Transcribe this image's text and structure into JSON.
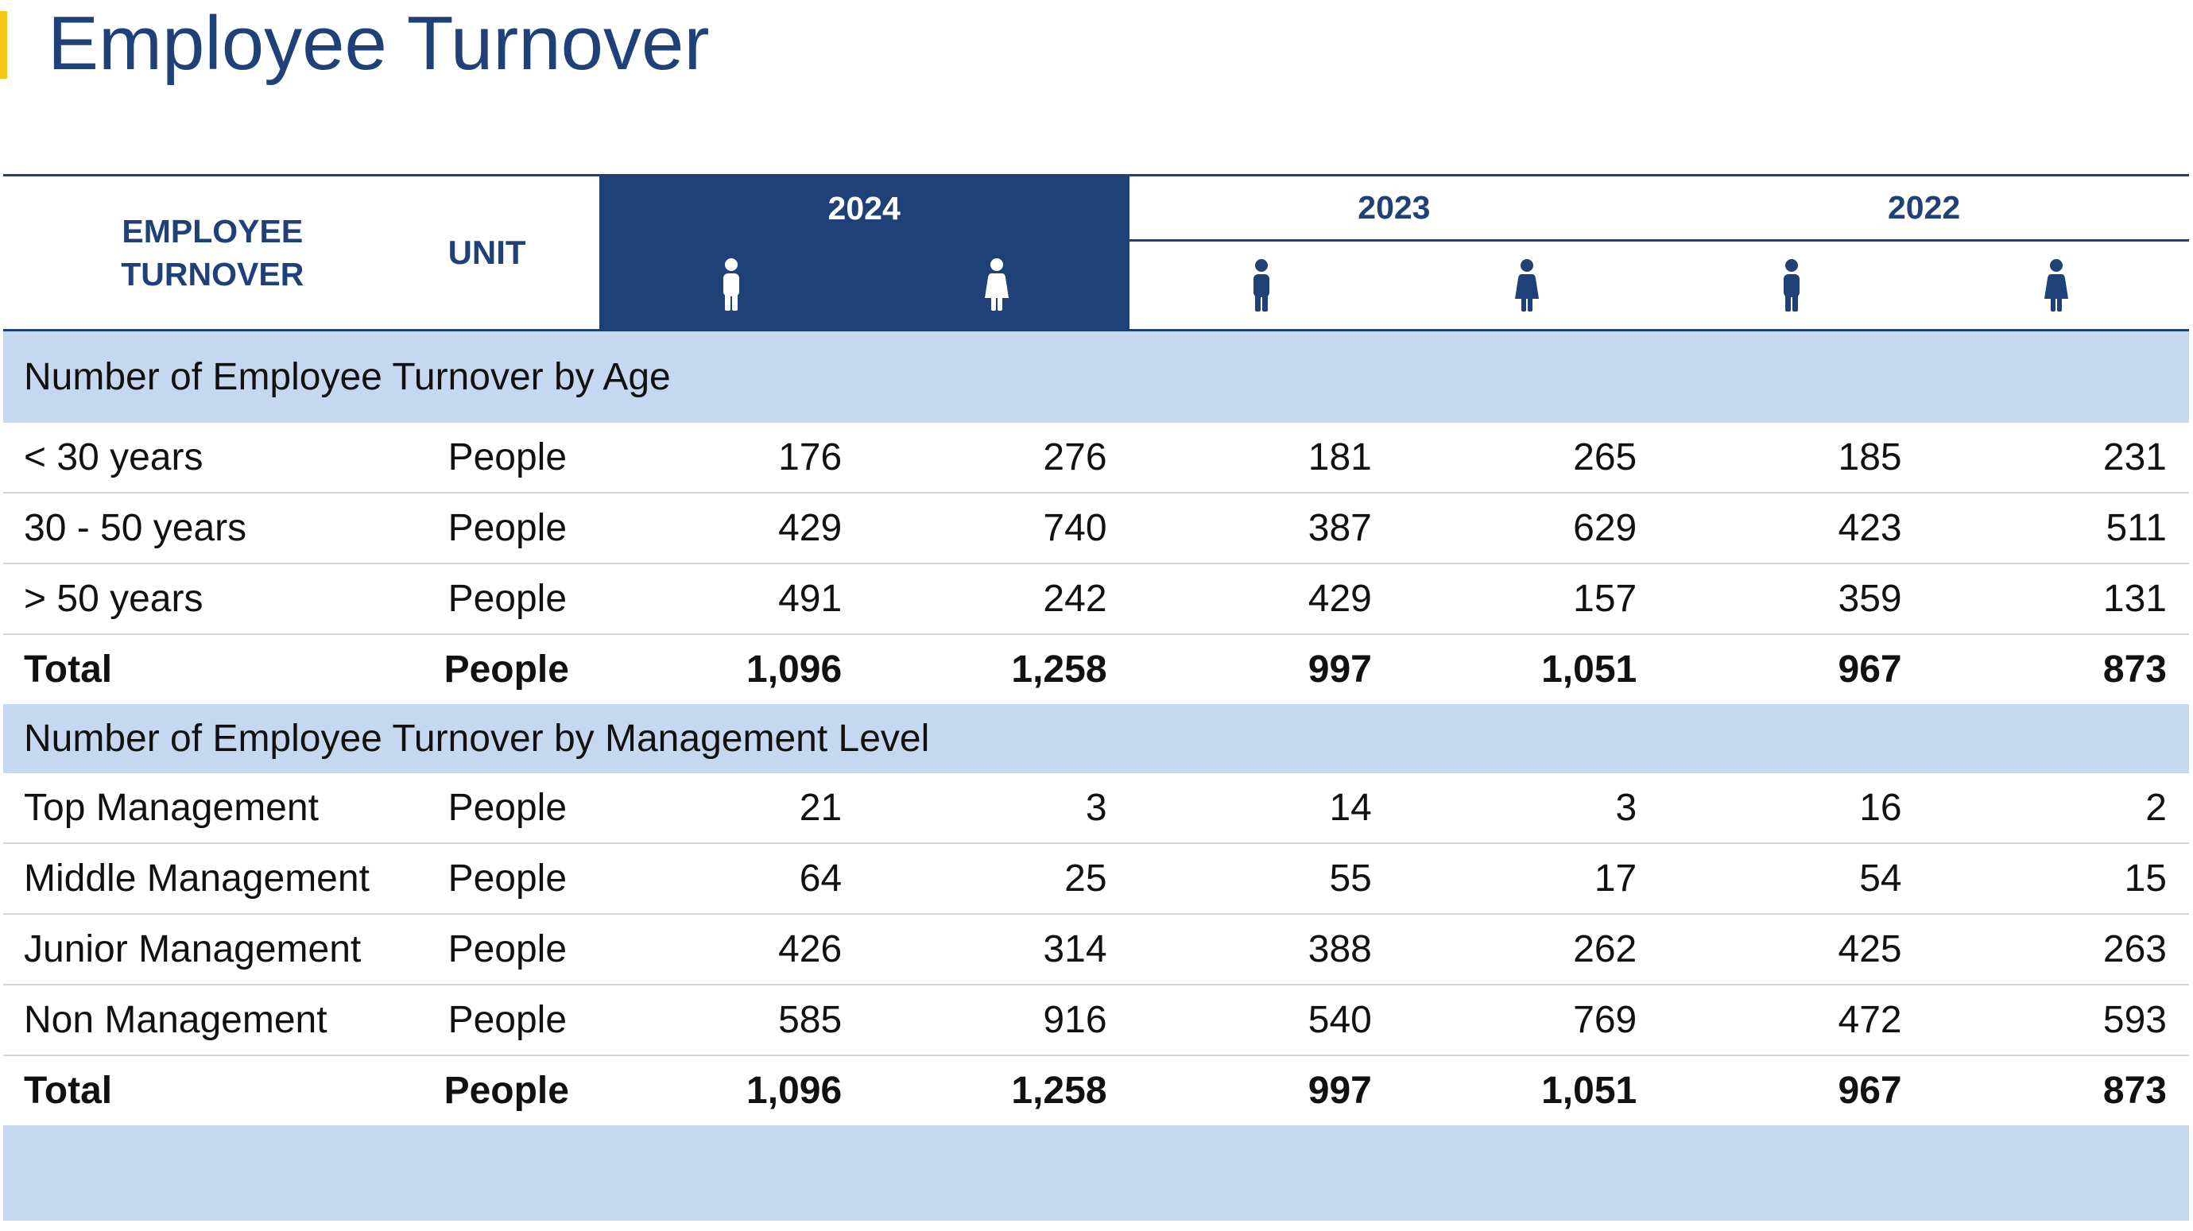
{
  "page": {
    "title": "Employee Turnover"
  },
  "colors": {
    "brand_blue": "#1f4178",
    "accent_yellow": "#f5c518",
    "section_band": "#c5d8f0"
  },
  "header": {
    "label_line1": "EMPLOYEE",
    "label_line2": "TURNOVER",
    "unit": "UNIT",
    "years": [
      "2024",
      "2023",
      "2022"
    ],
    "icons": [
      "male-icon",
      "female-icon",
      "male-icon",
      "female-icon",
      "male-icon",
      "female-icon"
    ]
  },
  "sections": [
    {
      "title": "Number of Employee Turnover by Age",
      "rows": [
        {
          "label": "< 30 years",
          "unit": "People",
          "values": [
            "176",
            "276",
            "181",
            "265",
            "185",
            "231"
          ]
        },
        {
          "label": "30 - 50 years",
          "unit": "People",
          "values": [
            "429",
            "740",
            "387",
            "629",
            "423",
            "511"
          ]
        },
        {
          "label": "> 50 years",
          "unit": "People",
          "values": [
            "491",
            "242",
            "429",
            "157",
            "359",
            "131"
          ]
        }
      ],
      "total": {
        "label": "Total",
        "unit": "People",
        "values": [
          "1,096",
          "1,258",
          "997",
          "1,051",
          "967",
          "873"
        ]
      }
    },
    {
      "title": "Number of Employee Turnover by Management Level",
      "rows": [
        {
          "label": "Top Management",
          "unit": "People",
          "values": [
            "21",
            "3",
            "14",
            "3",
            "16",
            "2"
          ]
        },
        {
          "label": "Middle Management",
          "unit": "People",
          "values": [
            "64",
            "25",
            "55",
            "17",
            "54",
            "15"
          ]
        },
        {
          "label": "Junior Management",
          "unit": "People",
          "values": [
            "426",
            "314",
            "388",
            "262",
            "425",
            "263"
          ]
        },
        {
          "label": "Non Management",
          "unit": "People",
          "values": [
            "585",
            "916",
            "540",
            "769",
            "472",
            "593"
          ]
        }
      ],
      "total": {
        "label": "Total",
        "unit": "People",
        "values": [
          "1,096",
          "1,258",
          "997",
          "1,051",
          "967",
          "873"
        ]
      }
    }
  ]
}
